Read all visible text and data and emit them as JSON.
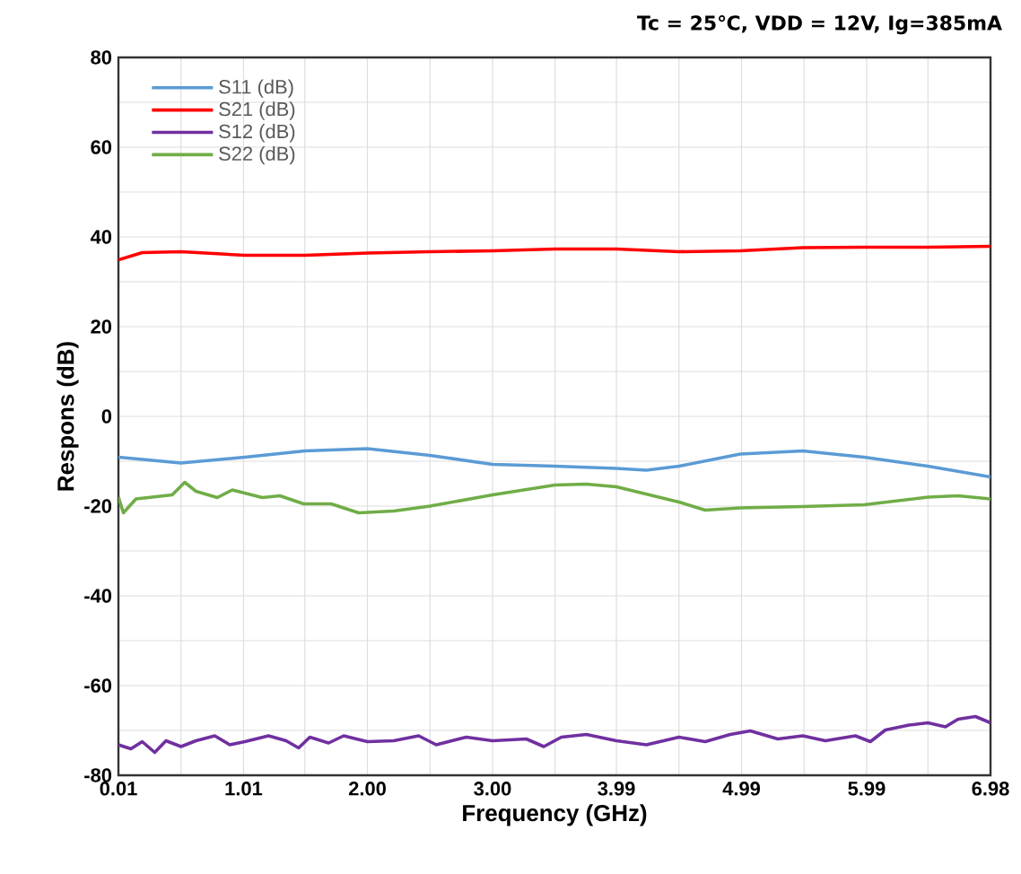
{
  "chart_data": {
    "type": "line",
    "title": "Tc = 25℃, VDD = 12V, Ig=385mA",
    "xlabel": "Frequency (GHz)",
    "ylabel": "Respons (dB)",
    "xlim": [
      0.01,
      6.98
    ],
    "xticks": [
      {
        "value": 0.01,
        "label": "0.01"
      },
      {
        "value": 0.51,
        "label": null
      },
      {
        "value": 1.01,
        "label": "1.01"
      },
      {
        "value": 1.5,
        "label": null
      },
      {
        "value": 2.0,
        "label": "2.00"
      },
      {
        "value": 2.5,
        "label": null
      },
      {
        "value": 3.0,
        "label": "3.00"
      },
      {
        "value": 3.5,
        "label": null
      },
      {
        "value": 3.99,
        "label": "3.99"
      },
      {
        "value": 4.49,
        "label": null
      },
      {
        "value": 4.99,
        "label": "4.99"
      },
      {
        "value": 5.49,
        "label": null
      },
      {
        "value": 5.99,
        "label": "5.99"
      },
      {
        "value": 6.48,
        "label": null
      },
      {
        "value": 6.98,
        "label": "6.98"
      }
    ],
    "ylim": [
      -80,
      80
    ],
    "yticks": [
      -80,
      {
        "value": -70,
        "label": null
      },
      -60,
      {
        "value": -50,
        "label": null
      },
      -40,
      {
        "value": -30,
        "label": null
      },
      -20,
      {
        "value": -10,
        "label": null
      },
      0,
      {
        "value": 10,
        "label": null
      },
      20,
      {
        "value": 30,
        "label": null
      },
      40,
      {
        "value": 50,
        "label": null
      },
      60,
      {
        "value": 70,
        "label": null
      },
      80
    ],
    "grid": true,
    "legend": "top left",
    "marker": "none",
    "line_style": "solid",
    "series": [
      {
        "name": "S11 (dB)",
        "color": "#5b9bd5",
        "x": [
          0.01,
          0.51,
          1.02,
          1.5,
          2.0,
          2.5,
          3.0,
          3.5,
          3.99,
          4.23,
          4.49,
          4.98,
          5.48,
          5.97,
          6.48,
          6.98
        ],
        "values": [
          -9.1,
          -10.4,
          -9.1,
          -7.7,
          -7.2,
          -8.7,
          -10.7,
          -11.1,
          -11.6,
          -12,
          -11.1,
          -8.4,
          -7.7,
          -9.1,
          -11.1,
          -13.5
        ]
      },
      {
        "name": "S21 (dB)",
        "color": "#ff0000",
        "x": [
          0.01,
          0.2,
          0.51,
          1.02,
          1.5,
          2.0,
          2.5,
          3.0,
          3.5,
          3.99,
          4.49,
          4.98,
          5.48,
          5.97,
          6.48,
          6.98
        ],
        "values": [
          34.9,
          36.5,
          36.7,
          35.9,
          35.9,
          36.4,
          36.7,
          36.9,
          37.3,
          37.3,
          36.7,
          36.9,
          37.6,
          37.7,
          37.7,
          37.9
        ]
      },
      {
        "name": "S12 (dB)",
        "color": "#7030a0",
        "x": [
          0.01,
          0.11,
          0.2,
          0.3,
          0.39,
          0.51,
          0.63,
          0.78,
          0.9,
          1.02,
          1.21,
          1.35,
          1.45,
          1.54,
          1.69,
          1.81,
          2.0,
          2.21,
          2.41,
          2.55,
          2.79,
          3.0,
          3.27,
          3.41,
          3.55,
          3.75,
          3.99,
          4.23,
          4.49,
          4.7,
          4.9,
          5.06,
          5.28,
          5.48,
          5.66,
          5.9,
          6.02,
          6.14,
          6.33,
          6.48,
          6.62,
          6.72,
          6.86,
          6.98
        ],
        "values": [
          -73.2,
          -74.1,
          -72.5,
          -74.9,
          -72.3,
          -73.6,
          -72.3,
          -71.2,
          -73.2,
          -72.5,
          -71.2,
          -72.3,
          -73.9,
          -71.5,
          -72.8,
          -71.2,
          -72.5,
          -72.3,
          -71.2,
          -73.2,
          -71.5,
          -72.3,
          -71.9,
          -73.6,
          -71.5,
          -70.9,
          -72.3,
          -73.2,
          -71.5,
          -72.5,
          -70.9,
          -70.1,
          -71.9,
          -71.2,
          -72.3,
          -71.2,
          -72.5,
          -69.9,
          -68.8,
          -68.3,
          -69.2,
          -67.5,
          -66.9,
          -68.3
        ]
      },
      {
        "name": "S22 (dB)",
        "color": "#70ad47",
        "x": [
          0.01,
          0.05,
          0.15,
          0.44,
          0.54,
          0.63,
          0.8,
          0.92,
          1.16,
          1.3,
          1.49,
          1.71,
          1.93,
          2.21,
          2.5,
          3.0,
          3.5,
          3.75,
          3.99,
          4.49,
          4.7,
          4.98,
          5.48,
          5.97,
          6.48,
          6.72,
          6.98
        ],
        "values": [
          -18,
          -21.5,
          -18.4,
          -17.5,
          -14.7,
          -16.7,
          -18.1,
          -16.4,
          -18.1,
          -17.7,
          -19.5,
          -19.5,
          -21.5,
          -21.1,
          -20,
          -17.5,
          -15.3,
          -15.1,
          -15.7,
          -19.1,
          -20.9,
          -20.4,
          -20.1,
          -19.7,
          -18,
          -17.7,
          -18.4
        ]
      }
    ]
  }
}
